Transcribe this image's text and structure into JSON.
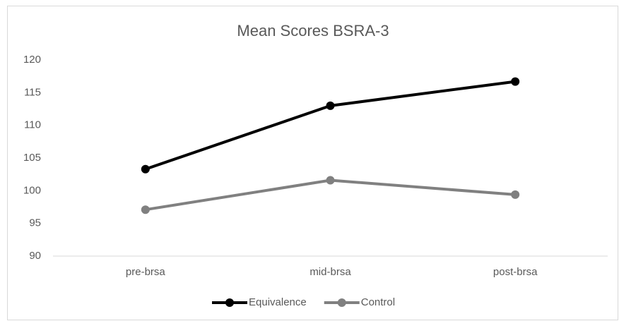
{
  "chart_data": {
    "type": "line",
    "title": "Mean Scores BSRA-3",
    "categories": [
      "pre-brsa",
      "mid-brsa",
      "post-brsa"
    ],
    "series": [
      {
        "name": "Equivalence",
        "color": "#000000",
        "values": [
          103.3,
          113.0,
          116.7
        ]
      },
      {
        "name": "Control",
        "color": "#808080",
        "values": [
          97.1,
          101.6,
          99.4
        ]
      }
    ],
    "ylim": [
      90,
      120
    ],
    "yticks": [
      90,
      95,
      100,
      105,
      110,
      115,
      120
    ],
    "grid": false,
    "legend": "bottom"
  }
}
